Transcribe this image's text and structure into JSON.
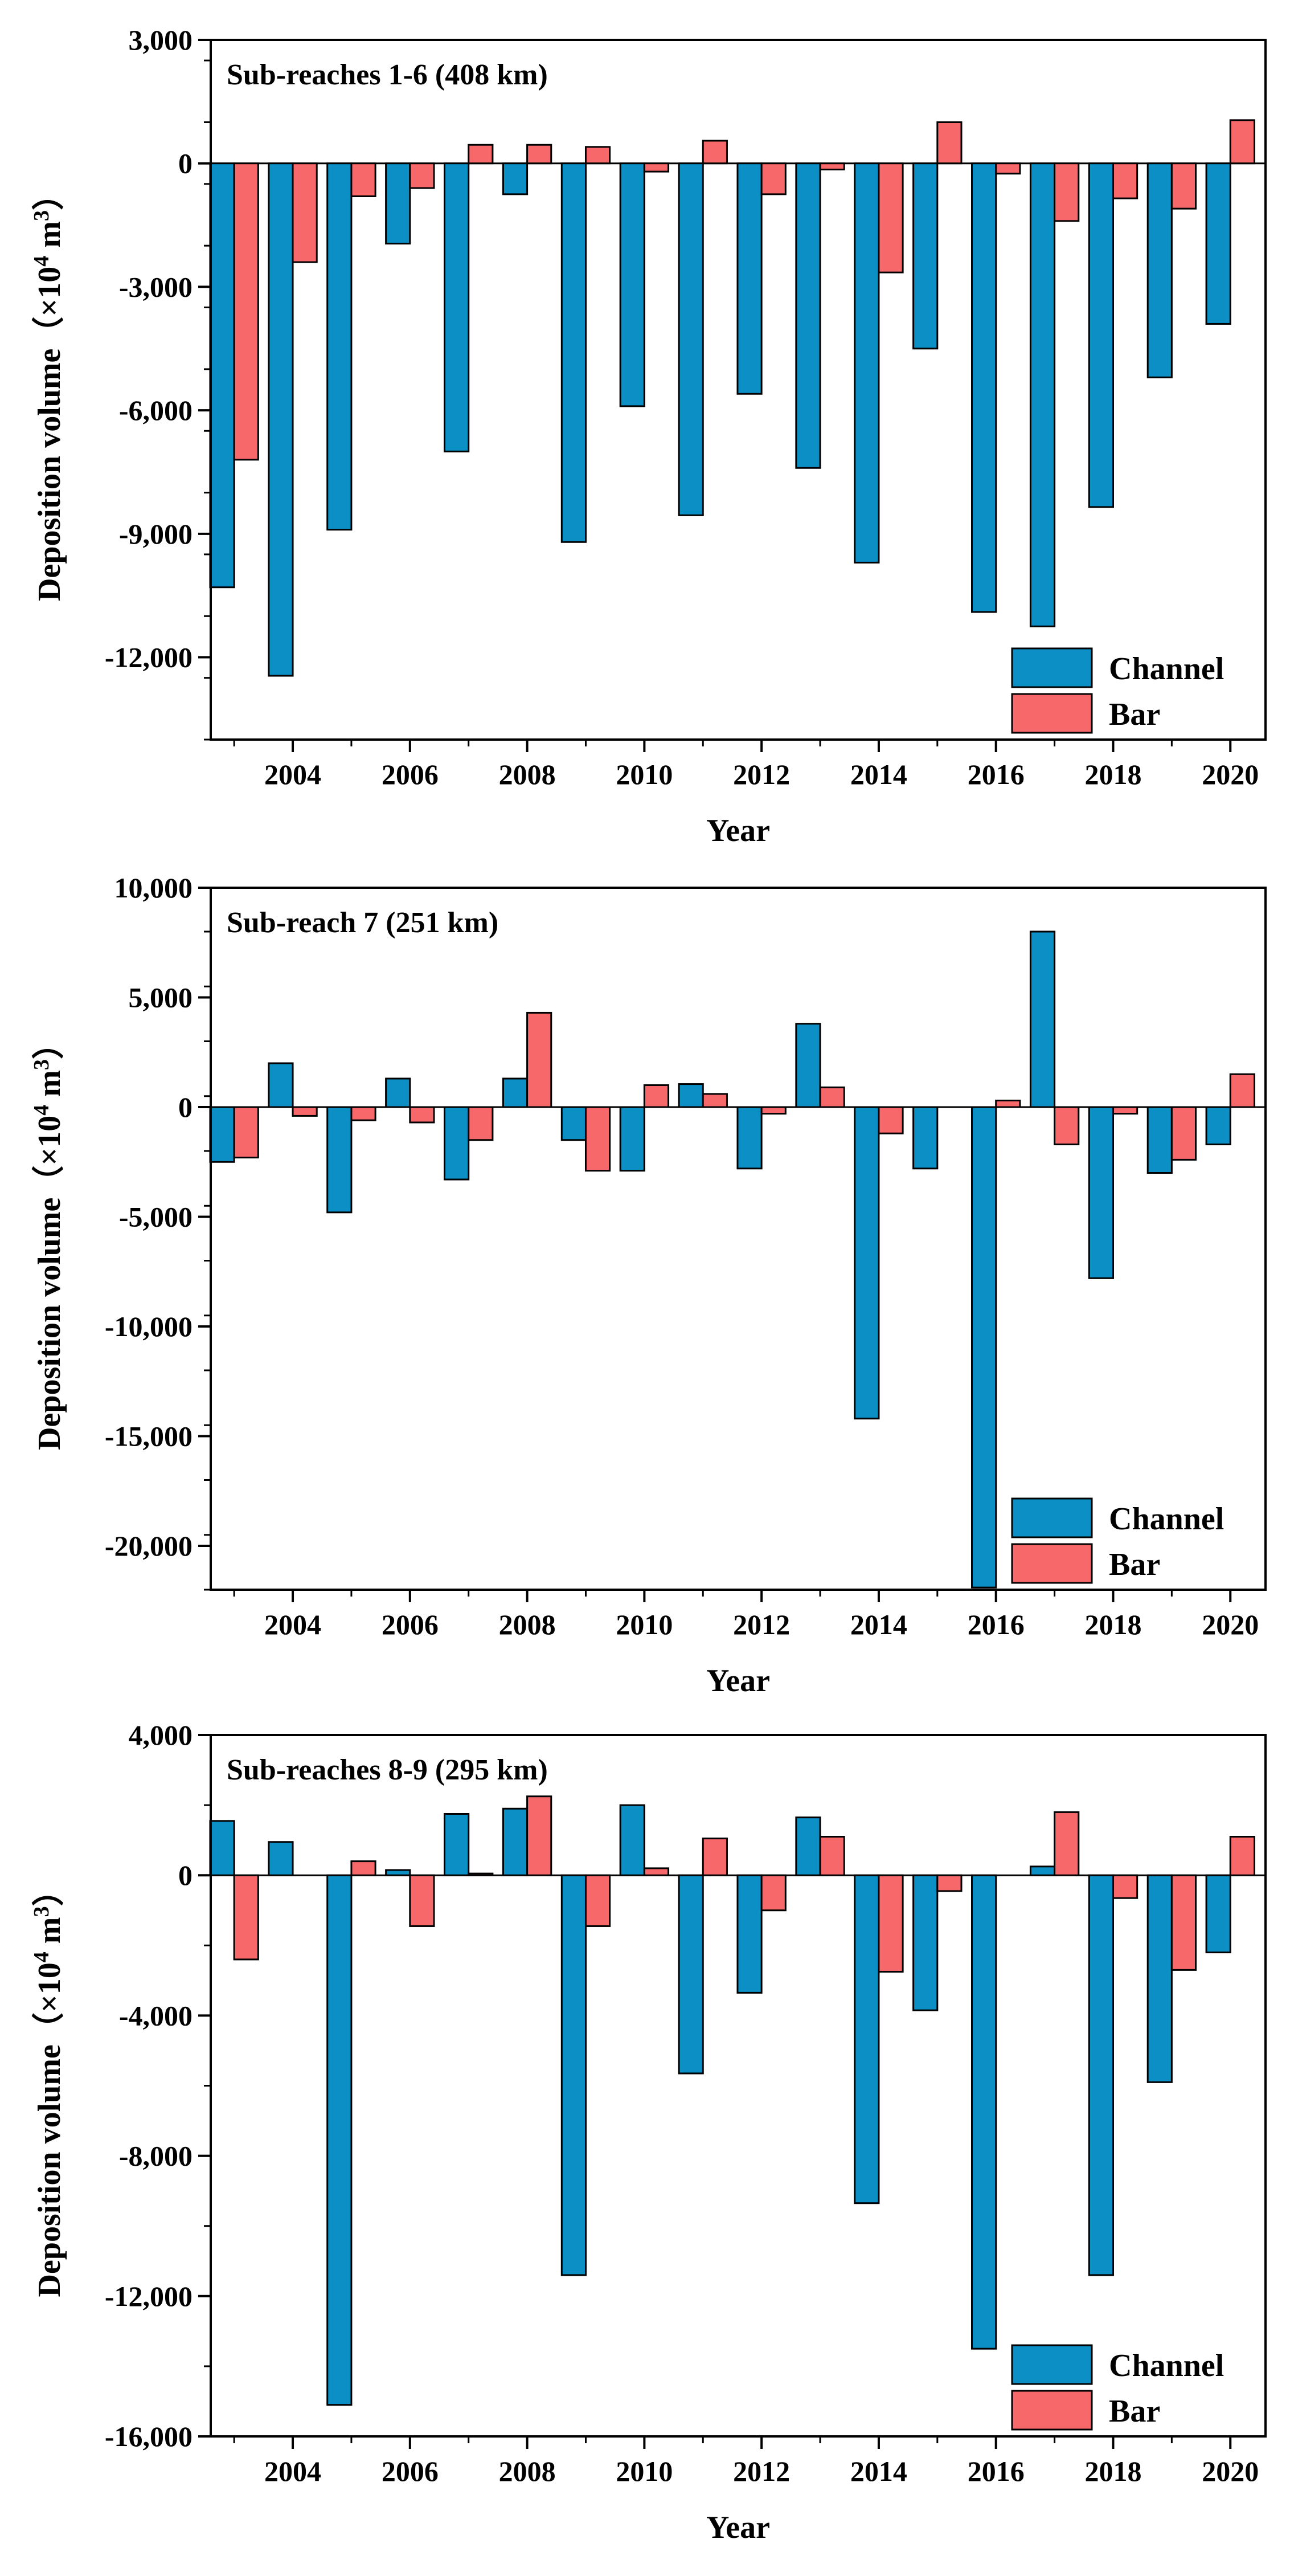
{
  "chart_data": [
    {
      "type": "bar",
      "title": "Sub-reaches 1-6 (408 km)",
      "xlabel": "Year",
      "ylabel_main": "Deposition volume（×10",
      "ylabel_exp1": "4",
      "ylabel_mid": " m",
      "ylabel_exp2": "3",
      "ylabel_end": "）",
      "ylim": [
        -14000,
        3000
      ],
      "yticks": [
        3000,
        0,
        -3000,
        -6000,
        -9000,
        -12000
      ],
      "ytick_labels": [
        "3,000",
        "0",
        "-3,000",
        "-6,000",
        "-9,000",
        "-12,000"
      ],
      "xlim": [
        2002.6,
        2020.6
      ],
      "xticks": [
        2004,
        2006,
        2008,
        2010,
        2012,
        2014,
        2016,
        2018,
        2020
      ],
      "xtick_labels": [
        "2004",
        "2006",
        "2008",
        "2010",
        "2012",
        "2014",
        "2016",
        "2018",
        "2020"
      ],
      "categories": [
        2003,
        2004,
        2005,
        2006,
        2007,
        2008,
        2009,
        2010,
        2011,
        2012,
        2013,
        2014,
        2015,
        2016,
        2017,
        2018,
        2019,
        2020
      ],
      "series": [
        {
          "name": "Channel",
          "color": "#0B8FC4",
          "values": [
            -10300,
            -12450,
            -8900,
            -1950,
            -7000,
            -750,
            -9200,
            -5900,
            -8550,
            -5600,
            -7400,
            -9700,
            -4500,
            -10900,
            -11250,
            -8350,
            -5200,
            -3900
          ]
        },
        {
          "name": "Bar",
          "color": "#F6686A",
          "values": [
            -7200,
            -2400,
            -800,
            -600,
            450,
            450,
            400,
            -200,
            550,
            -750,
            -150,
            -2650,
            1000,
            -250,
            -1400,
            -850,
            -1100,
            1050
          ]
        }
      ],
      "legend": [
        "Channel",
        "Bar"
      ],
      "legend_position": "bottom-right"
    },
    {
      "type": "bar",
      "title": "Sub-reach 7 (251 km)",
      "xlabel": "Year",
      "ylabel_main": "Deposition volume（×10",
      "ylabel_exp1": "4",
      "ylabel_mid": " m",
      "ylabel_exp2": "3",
      "ylabel_end": "）",
      "ylim": [
        -22000,
        10000
      ],
      "yticks": [
        10000,
        5000,
        0,
        -5000,
        -10000,
        -15000,
        -20000
      ],
      "ytick_labels": [
        "10,000",
        "5,000",
        "0",
        "-5,000",
        "-10,000",
        "-15,000",
        "-20,000"
      ],
      "xlim": [
        2002.6,
        2020.6
      ],
      "xticks": [
        2004,
        2006,
        2008,
        2010,
        2012,
        2014,
        2016,
        2018,
        2020
      ],
      "xtick_labels": [
        "2004",
        "2006",
        "2008",
        "2010",
        "2012",
        "2014",
        "2016",
        "2018",
        "2020"
      ],
      "categories": [
        2003,
        2004,
        2005,
        2006,
        2007,
        2008,
        2009,
        2010,
        2011,
        2012,
        2013,
        2014,
        2015,
        2016,
        2017,
        2018,
        2019,
        2020
      ],
      "series": [
        {
          "name": "Channel",
          "color": "#0B8FC4",
          "values": [
            -2500,
            2000,
            -4800,
            1300,
            -3300,
            1300,
            -1500,
            -2900,
            1050,
            -2800,
            3800,
            -14200,
            -2800,
            -21900,
            8000,
            -7800,
            -3000,
            -1700
          ]
        },
        {
          "name": "Bar",
          "color": "#F6686A",
          "values": [
            -2300,
            -400,
            -600,
            -700,
            -1500,
            4300,
            -2900,
            1000,
            600,
            -300,
            900,
            -1200,
            0,
            300,
            -1700,
            -300,
            -2400,
            1500
          ]
        }
      ],
      "legend": [
        "Channel",
        "Bar"
      ],
      "legend_position": "bottom-right"
    },
    {
      "type": "bar",
      "title": "Sub-reaches 8-9 (295 km)",
      "xlabel": "Year",
      "ylabel_main": "Deposition volume（×10",
      "ylabel_exp1": "4",
      "ylabel_mid": " m",
      "ylabel_exp2": "3",
      "ylabel_end": "）",
      "ylim": [
        -16000,
        4000
      ],
      "yticks": [
        4000,
        0,
        -4000,
        -8000,
        -12000,
        -16000
      ],
      "ytick_labels": [
        "4,000",
        "0",
        "-4,000",
        "-8,000",
        "-12,000",
        "-16,000"
      ],
      "xlim": [
        2002.6,
        2020.6
      ],
      "xticks": [
        2004,
        2006,
        2008,
        2010,
        2012,
        2014,
        2016,
        2018,
        2020
      ],
      "xtick_labels": [
        "2004",
        "2006",
        "2008",
        "2010",
        "2012",
        "2014",
        "2016",
        "2018",
        "2020"
      ],
      "categories": [
        2003,
        2004,
        2005,
        2006,
        2007,
        2008,
        2009,
        2010,
        2011,
        2012,
        2013,
        2014,
        2015,
        2016,
        2017,
        2018,
        2019,
        2020
      ],
      "series": [
        {
          "name": "Channel",
          "color": "#0B8FC4",
          "values": [
            1550,
            950,
            -15100,
            150,
            1750,
            1900,
            -11400,
            2000,
            -5650,
            -3350,
            1650,
            -9350,
            -3850,
            -13500,
            250,
            -11400,
            -5900,
            -2200
          ]
        },
        {
          "name": "Bar",
          "color": "#F6686A",
          "values": [
            -2400,
            0,
            400,
            -1450,
            50,
            2250,
            -1450,
            200,
            1050,
            -1000,
            1100,
            -2750,
            -450,
            0,
            1800,
            -650,
            -2700,
            1100
          ]
        }
      ],
      "legend": [
        "Channel",
        "Bar"
      ],
      "legend_position": "bottom-right"
    }
  ]
}
